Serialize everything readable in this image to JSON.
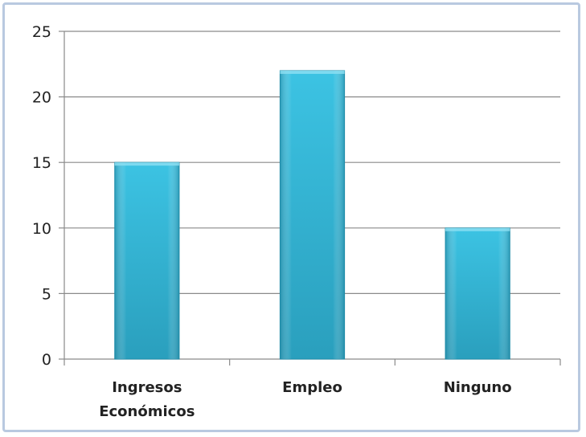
{
  "chart_data": {
    "type": "bar",
    "categories": [
      [
        "Ingresos",
        "Económicos"
      ],
      [
        "Empleo"
      ],
      [
        "Ninguno"
      ]
    ],
    "values": [
      15,
      22,
      10
    ],
    "title": "",
    "xlabel": "",
    "ylabel": "",
    "ylim": [
      0,
      25
    ],
    "yticks": [
      0,
      5,
      10,
      15,
      20,
      25
    ],
    "grid": true,
    "legend": "none",
    "bar_color": "#32b6d6",
    "bar_color_dark": "#1f8fad"
  }
}
